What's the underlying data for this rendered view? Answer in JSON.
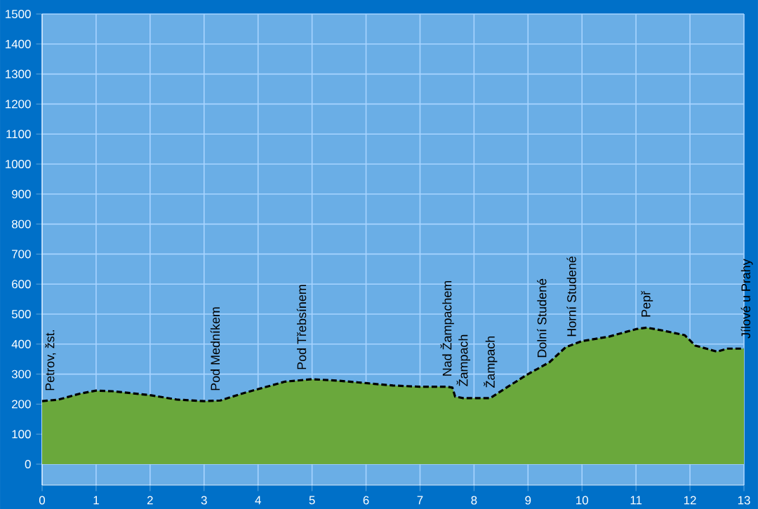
{
  "chart_data": {
    "type": "area",
    "xlim": [
      0,
      13
    ],
    "ylim": [
      -70,
      1500
    ],
    "xticks": [
      0,
      1,
      2,
      3,
      4,
      5,
      6,
      7,
      8,
      9,
      10,
      11,
      12,
      13
    ],
    "yticks": [
      0,
      100,
      200,
      300,
      400,
      500,
      600,
      700,
      800,
      900,
      1000,
      1100,
      1200,
      1300,
      1400,
      1500
    ],
    "grid": true,
    "line_style": "dashed",
    "series": [
      {
        "color": "#6aa83c",
        "x": [
          0,
          0.3,
          0.7,
          1,
          1.3,
          2,
          2.5,
          3,
          3.3,
          3.7,
          4,
          4.5,
          5,
          5.5,
          6,
          6.5,
          7,
          7.5,
          7.6,
          7.65,
          7.8,
          8.3,
          8.6,
          9,
          9.2,
          9.4,
          9.7,
          10,
          10.5,
          11,
          11.2,
          11.5,
          11.9,
          12.1,
          12.5,
          12.7,
          13
        ],
        "values": [
          210,
          215,
          235,
          245,
          243,
          230,
          215,
          210,
          212,
          235,
          250,
          275,
          283,
          278,
          270,
          262,
          258,
          258,
          255,
          225,
          220,
          220,
          255,
          300,
          320,
          340,
          390,
          410,
          425,
          450,
          455,
          445,
          430,
          395,
          375,
          385,
          385
        ]
      }
    ],
    "annotations": [
      {
        "text": "Petrov, žst.",
        "x": 0.05,
        "y": 210
      },
      {
        "text": "Pod Medníkem",
        "x": 3.1,
        "y": 210
      },
      {
        "text": "Pod Třebsínem",
        "x": 4.7,
        "y": 280
      },
      {
        "text": "Nad Žampachem",
        "x": 7.4,
        "y": 258
      },
      {
        "text": "Žampach",
        "x": 7.7,
        "y": 225
      },
      {
        "text": "Žampach",
        "x": 8.2,
        "y": 220
      },
      {
        "text": "Dolní Studené",
        "x": 9.15,
        "y": 320
      },
      {
        "text": "Horní Studené",
        "x": 9.7,
        "y": 390
      },
      {
        "text": "Pepř",
        "x": 11.1,
        "y": 455
      },
      {
        "text": "Jílové u Prahy",
        "x": 12.95,
        "y": 385
      }
    ]
  }
}
